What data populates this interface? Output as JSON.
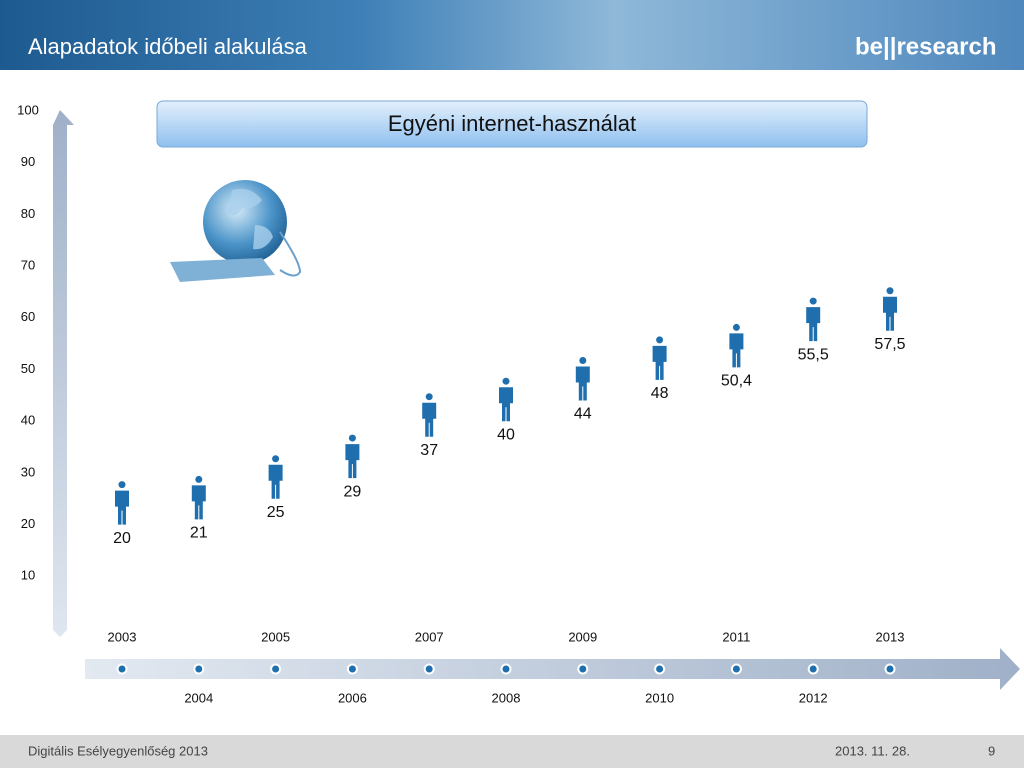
{
  "header": {
    "title": "Alapadatok időbeli alakulása",
    "logo": "be||research"
  },
  "chart_data": {
    "type": "pictogram",
    "title": "Egyéni internet-használat",
    "categories": [
      "2003",
      "2004",
      "2005",
      "2006",
      "2007",
      "2008",
      "2009",
      "2010",
      "2011",
      "2012",
      "2013"
    ],
    "values": [
      20,
      21,
      25,
      29,
      37,
      40,
      44,
      48,
      50.4,
      55.5,
      57.5
    ],
    "value_labels": [
      "20",
      "21",
      "25",
      "29",
      "37",
      "40",
      "44",
      "48",
      "50,4",
      "55,5",
      "57,5"
    ],
    "color": "#1f6fae",
    "ylim": [
      0,
      100
    ],
    "yticks": [
      10,
      20,
      30,
      40,
      50,
      60,
      70,
      80,
      90,
      100
    ]
  },
  "footer": {
    "left": "Digitális Esélyegyenlőség 2013",
    "date": "2013. 11. 28.",
    "page": "9"
  }
}
